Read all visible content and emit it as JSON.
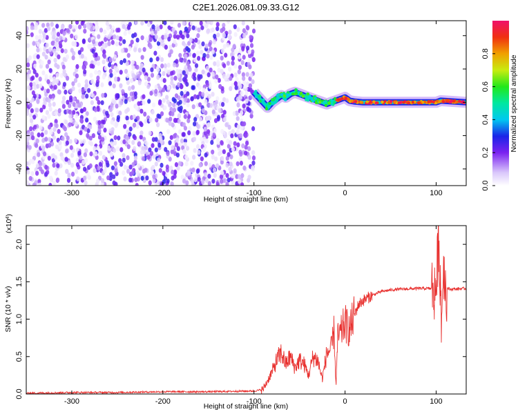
{
  "title": "C2E1.2026.081.09.33.G12",
  "chart_data": [
    {
      "type": "heatmap",
      "title": "C2E1.2026.081.09.33.G12",
      "xlabel": "Height of straight line (km)",
      "ylabel": "Frequency (Hz)",
      "xlim": [
        -350,
        133
      ],
      "ylim": [
        -50,
        49
      ],
      "xticks": [
        -300,
        -200,
        -100,
        0,
        100
      ],
      "xtick_labels": [
        "-300",
        "-200",
        "-100",
        "0",
        "100"
      ],
      "yticks": [
        -40,
        -20,
        0,
        20,
        40
      ],
      "ytick_labels": [
        "-40",
        "-20",
        "0",
        "20",
        "40"
      ],
      "colorbar": {
        "label": "Normalized spectral amplitude",
        "range": [
          0,
          1
        ],
        "ticks": [
          0.0,
          0.2,
          0.4,
          0.6,
          0.8
        ],
        "tick_labels": [
          "0.0",
          "0.2",
          "0.4",
          "0.6",
          "0.8"
        ]
      },
      "regions": [
        {
          "x_range": [
            -350,
            -100
          ],
          "description": "broadband noise",
          "amplitude": [
            0.02,
            0.25
          ]
        },
        {
          "x_range": [
            -100,
            -10
          ],
          "description": "signal near 0 Hz",
          "amplitude": [
            0.3,
            0.6
          ]
        },
        {
          "x_range": [
            -10,
            133
          ],
          "description": "narrow carrier near 0 Hz",
          "amplitude": [
            0.7,
            1.0
          ]
        }
      ],
      "signal_trace": {
        "x": [
          -100,
          -95,
          -90,
          -85,
          -80,
          -75,
          -70,
          -65,
          -60,
          -55,
          -50,
          -45,
          -40,
          -35,
          -30,
          -25,
          -20,
          -15,
          -10,
          -5,
          0,
          5,
          10,
          20,
          40,
          60,
          80,
          100,
          105,
          133
        ],
        "y": [
          6,
          3,
          0,
          -3,
          0,
          2,
          4,
          3,
          5,
          6,
          5,
          4,
          3,
          2,
          1,
          0,
          -1,
          0,
          1,
          2,
          3,
          1,
          0.5,
          0,
          0,
          0,
          0,
          0,
          1,
          0
        ]
      }
    },
    {
      "type": "line",
      "xlabel": "Height of straight line (km)",
      "ylabel": "SNR (10 * v/v)",
      "multiplier_label": "(x10",
      "multiplier_exponent": "4",
      "xlim": [
        -350,
        133
      ],
      "ylim": [
        0,
        2.25
      ],
      "xticks": [
        -300,
        -200,
        -100,
        0,
        100
      ],
      "xtick_labels": [
        "-300",
        "-200",
        "-100",
        "0",
        "100"
      ],
      "yticks": [
        0,
        0.5,
        1.0,
        1.5,
        2.0
      ],
      "ytick_labels": [
        "0.0",
        "0.5",
        "1.0",
        "1.5",
        "2.0"
      ],
      "series": [
        {
          "name": "SNR",
          "color": "#e8302e",
          "x": [
            -350,
            -300,
            -250,
            -200,
            -150,
            -100,
            -90,
            -85,
            -80,
            -75,
            -70,
            -65,
            -60,
            -55,
            -50,
            -45,
            -40,
            -35,
            -30,
            -25,
            -20,
            -15,
            -12,
            -10,
            -8,
            -5,
            -2,
            0,
            5,
            10,
            15,
            20,
            30,
            40,
            50,
            60,
            80,
            95,
            100,
            103,
            106,
            108,
            110,
            115,
            133
          ],
          "y": [
            0.01,
            0.02,
            0.02,
            0.03,
            0.03,
            0.04,
            0.06,
            0.18,
            0.3,
            0.45,
            0.55,
            0.4,
            0.5,
            0.35,
            0.45,
            0.4,
            0.25,
            0.5,
            0.45,
            0.2,
            0.55,
            0.6,
            0.85,
            0.1,
            0.75,
            0.8,
            0.9,
            0.95,
            0.85,
            1.05,
            1.2,
            1.25,
            1.32,
            1.37,
            1.39,
            1.4,
            1.41,
            1.41,
            1.4,
            2.1,
            0.95,
            1.8,
            1.42,
            1.4,
            1.41
          ]
        }
      ]
    }
  ]
}
